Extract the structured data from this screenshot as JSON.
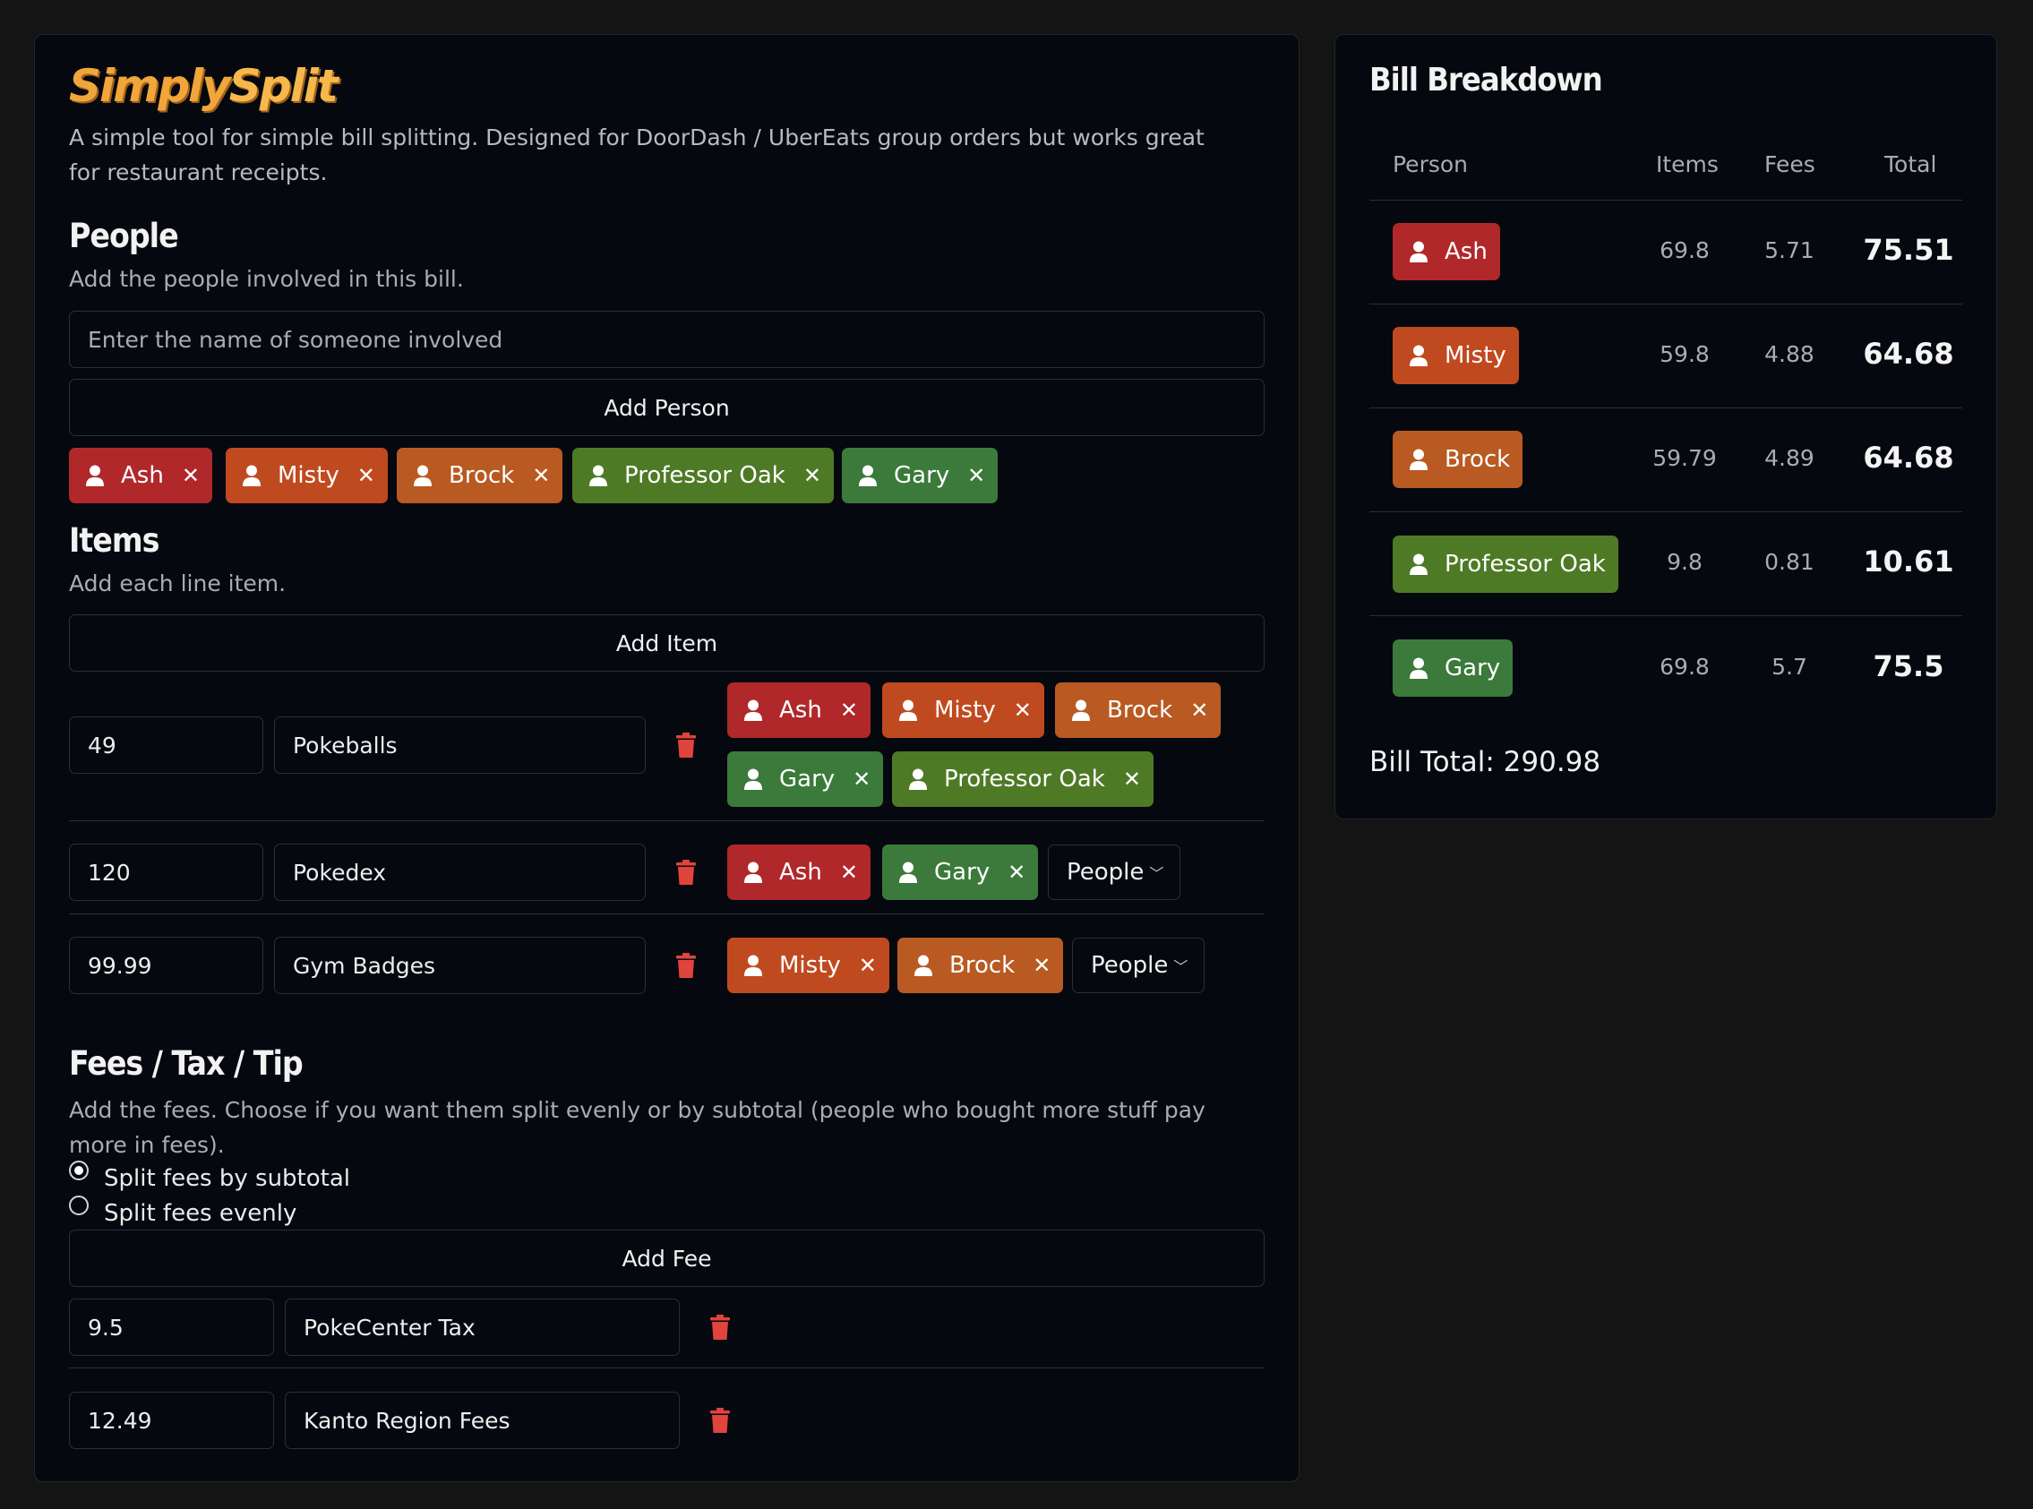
{
  "app": {
    "logo_part1": "Simply",
    "logo_part2": "Split",
    "description": "A simple tool for simple bill splitting. Designed for DoorDash / UberEats group orders but works great for restaurant receipts."
  },
  "people_section": {
    "title": "People",
    "subtitle": "Add the people involved in this bill.",
    "input_placeholder": "Enter the name of someone involved",
    "add_button": "Add Person",
    "people": [
      {
        "name": "Ash",
        "color": "#b0282a"
      },
      {
        "name": "Misty",
        "color": "#c04a20"
      },
      {
        "name": "Brock",
        "color": "#b85a22"
      },
      {
        "name": "Professor Oak",
        "color": "#4e7a26"
      },
      {
        "name": "Gary",
        "color": "#3b7a3b"
      }
    ]
  },
  "items_section": {
    "title": "Items",
    "subtitle": "Add each line item.",
    "add_button": "Add Item",
    "people_dropdown": "People",
    "items": [
      {
        "price": "49",
        "name": "Pokeballs",
        "assigned": [
          "Ash",
          "Misty",
          "Brock",
          "Gary",
          "Professor Oak"
        ]
      },
      {
        "price": "120",
        "name": "Pokedex",
        "assigned": [
          "Ash",
          "Gary"
        ]
      },
      {
        "price": "99.99",
        "name": "Gym Badges",
        "assigned": [
          "Misty",
          "Brock"
        ]
      }
    ]
  },
  "fees_section": {
    "title": "Fees / Tax / Tip",
    "subtitle": "Add the fees. Choose if you want them split evenly or by subtotal (people who bought more stuff pay more in fees).",
    "option_subtotal": "Split fees by subtotal",
    "option_evenly": "Split fees evenly",
    "selected": "subtotal",
    "add_button": "Add Fee",
    "fees": [
      {
        "amount": "9.5",
        "name": "PokeCenter Tax"
      },
      {
        "amount": "12.49",
        "name": "Kanto Region Fees"
      }
    ]
  },
  "breakdown": {
    "title": "Bill Breakdown",
    "columns": [
      "Person",
      "Items",
      "Fees",
      "Total"
    ],
    "rows": [
      {
        "person": "Ash",
        "items": "69.8",
        "fees": "5.71",
        "total": "75.51"
      },
      {
        "person": "Misty",
        "items": "59.8",
        "fees": "4.88",
        "total": "64.68"
      },
      {
        "person": "Brock",
        "items": "59.79",
        "fees": "4.89",
        "total": "64.68"
      },
      {
        "person": "Professor Oak",
        "items": "9.8",
        "fees": "0.81",
        "total": "10.61"
      },
      {
        "person": "Gary",
        "items": "69.8",
        "fees": "5.7",
        "total": "75.5"
      }
    ],
    "bill_total_label": "Bill Total: 290.98"
  },
  "icons": {
    "person": "person-icon",
    "remove": "close-icon",
    "delete": "trash-icon",
    "dropdown": "chevron-down-icon"
  }
}
